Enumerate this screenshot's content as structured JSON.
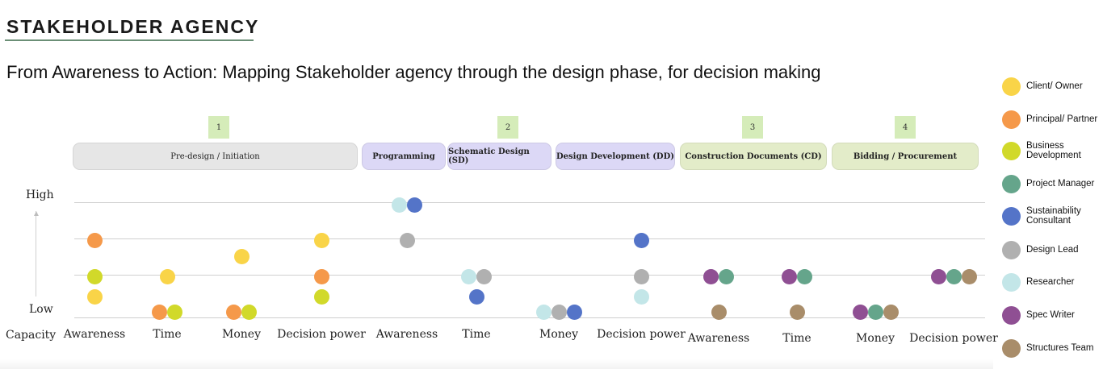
{
  "header": {
    "title": "STAKEHOLDER AGENCY",
    "subtitle": "From Awareness to Action: Mapping Stakeholder agency through the design phase, for decision making"
  },
  "phase_numbers": [
    "1",
    "2",
    "3",
    "4"
  ],
  "phases": [
    {
      "label": "Pre-design / Initiation",
      "color": "#e6e6e6"
    },
    {
      "label": "Programming",
      "color": "#dcd8f6"
    },
    {
      "label": "Schematic Design (SD)",
      "color": "#dcd8f6"
    },
    {
      "label": "Design Development (DD)",
      "color": "#dcd8f6"
    },
    {
      "label": "Construction Documents (CD)",
      "color": "#e3ecc9"
    },
    {
      "label": "Bidding / Procurement",
      "color": "#e3ecc9"
    }
  ],
  "y_axis": {
    "high": "High",
    "low": "Low",
    "corner": "Capacity"
  },
  "x_labels": [
    "Awareness",
    "Time",
    "Money",
    "Decision power",
    "Awareness",
    "Time",
    "Money",
    "Decision power",
    "Awareness",
    "Time",
    "Money",
    "Decision power"
  ],
  "legend": [
    {
      "label": "Client/ Owner",
      "color": "#f9d448",
      "icon": "circle"
    },
    {
      "label": "Principal/ Partner",
      "color": "#f5994a",
      "icon": "circle"
    },
    {
      "label": "Business Development",
      "color": "#d1d92a",
      "icon": "circle"
    },
    {
      "label": "Project Manager",
      "color": "#65a58b",
      "icon": "circle"
    },
    {
      "label": "Sustainability Consultant",
      "color": "#5474c8",
      "icon": "circle"
    },
    {
      "label": "Design Lead",
      "color": "#b0b0b0",
      "icon": "circle"
    },
    {
      "label": "Researcher",
      "color": "#c3e6e8",
      "icon": "circle"
    },
    {
      "label": "Spec Writer",
      "color": "#8f4f93",
      "icon": "circle"
    },
    {
      "label": "Structures Team",
      "color": "#a98d6a",
      "icon": "circle"
    }
  ],
  "dots": [
    {
      "column": 1,
      "level": 3,
      "stakeholder": "Principal/ Partner",
      "color": "#f5994a"
    },
    {
      "column": 1,
      "level": 2,
      "stakeholder": "Business Development",
      "color": "#d1d92a"
    },
    {
      "column": 1,
      "level": 1.5,
      "stakeholder": "Client/ Owner",
      "color": "#f9d448"
    },
    {
      "column": 2,
      "level": 2,
      "stakeholder": "Client/ Owner",
      "color": "#f9d448"
    },
    {
      "column": 2,
      "level": 1,
      "stakeholder": "Principal/ Partner",
      "color": "#f5994a"
    },
    {
      "column": 2,
      "level": 1,
      "stakeholder": "Business Development",
      "color": "#d1d92a"
    },
    {
      "column": 3,
      "level": 2.5,
      "stakeholder": "Client/ Owner",
      "color": "#f9d448"
    },
    {
      "column": 3,
      "level": 1,
      "stakeholder": "Principal/ Partner",
      "color": "#f5994a"
    },
    {
      "column": 3,
      "level": 1,
      "stakeholder": "Business Development",
      "color": "#d1d92a"
    },
    {
      "column": 4,
      "level": 3,
      "stakeholder": "Client/ Owner",
      "color": "#f9d448"
    },
    {
      "column": 4,
      "level": 2,
      "stakeholder": "Principal/ Partner",
      "color": "#f5994a"
    },
    {
      "column": 4,
      "level": 1.5,
      "stakeholder": "Business Development",
      "color": "#d1d92a"
    },
    {
      "column": 5,
      "level": 4,
      "stakeholder": "Researcher",
      "color": "#c3e6e8"
    },
    {
      "column": 5,
      "level": 4,
      "stakeholder": "Sustainability Consultant",
      "color": "#5474c8"
    },
    {
      "column": 5,
      "level": 3,
      "stakeholder": "Design Lead",
      "color": "#b0b0b0"
    },
    {
      "column": 6,
      "level": 2,
      "stakeholder": "Researcher",
      "color": "#c3e6e8"
    },
    {
      "column": 6,
      "level": 2,
      "stakeholder": "Design Lead",
      "color": "#b0b0b0"
    },
    {
      "column": 6,
      "level": 1.5,
      "stakeholder": "Sustainability Consultant",
      "color": "#5474c8"
    },
    {
      "column": 7,
      "level": 1,
      "stakeholder": "Researcher",
      "color": "#c3e6e8"
    },
    {
      "column": 7,
      "level": 1,
      "stakeholder": "Design Lead",
      "color": "#b0b0b0"
    },
    {
      "column": 7,
      "level": 1,
      "stakeholder": "Sustainability Consultant",
      "color": "#5474c8"
    },
    {
      "column": 8,
      "level": 3,
      "stakeholder": "Sustainability Consultant",
      "color": "#5474c8"
    },
    {
      "column": 8,
      "level": 2,
      "stakeholder": "Design Lead",
      "color": "#b0b0b0"
    },
    {
      "column": 8,
      "level": 1.5,
      "stakeholder": "Researcher",
      "color": "#c3e6e8"
    },
    {
      "column": 9,
      "level": 2,
      "stakeholder": "Spec Writer",
      "color": "#8f4f93"
    },
    {
      "column": 9,
      "level": 2,
      "stakeholder": "Project Manager",
      "color": "#65a58b"
    },
    {
      "column": 9,
      "level": 1,
      "stakeholder": "Structures Team",
      "color": "#a98d6a"
    },
    {
      "column": 10,
      "level": 2,
      "stakeholder": "Spec Writer",
      "color": "#8f4f93"
    },
    {
      "column": 10,
      "level": 2,
      "stakeholder": "Project Manager",
      "color": "#65a58b"
    },
    {
      "column": 10,
      "level": 1,
      "stakeholder": "Structures Team",
      "color": "#a98d6a"
    },
    {
      "column": 11,
      "level": 1,
      "stakeholder": "Spec Writer",
      "color": "#8f4f93"
    },
    {
      "column": 11,
      "level": 1,
      "stakeholder": "Project Manager",
      "color": "#65a58b"
    },
    {
      "column": 11,
      "level": 1,
      "stakeholder": "Structures Team",
      "color": "#a98d6a"
    },
    {
      "column": 12,
      "level": 2,
      "stakeholder": "Spec Writer",
      "color": "#8f4f93"
    },
    {
      "column": 12,
      "level": 2,
      "stakeholder": "Project Manager",
      "color": "#65a58b"
    },
    {
      "column": 12,
      "level": 2,
      "stakeholder": "Structures Team",
      "color": "#a98d6a"
    }
  ]
}
